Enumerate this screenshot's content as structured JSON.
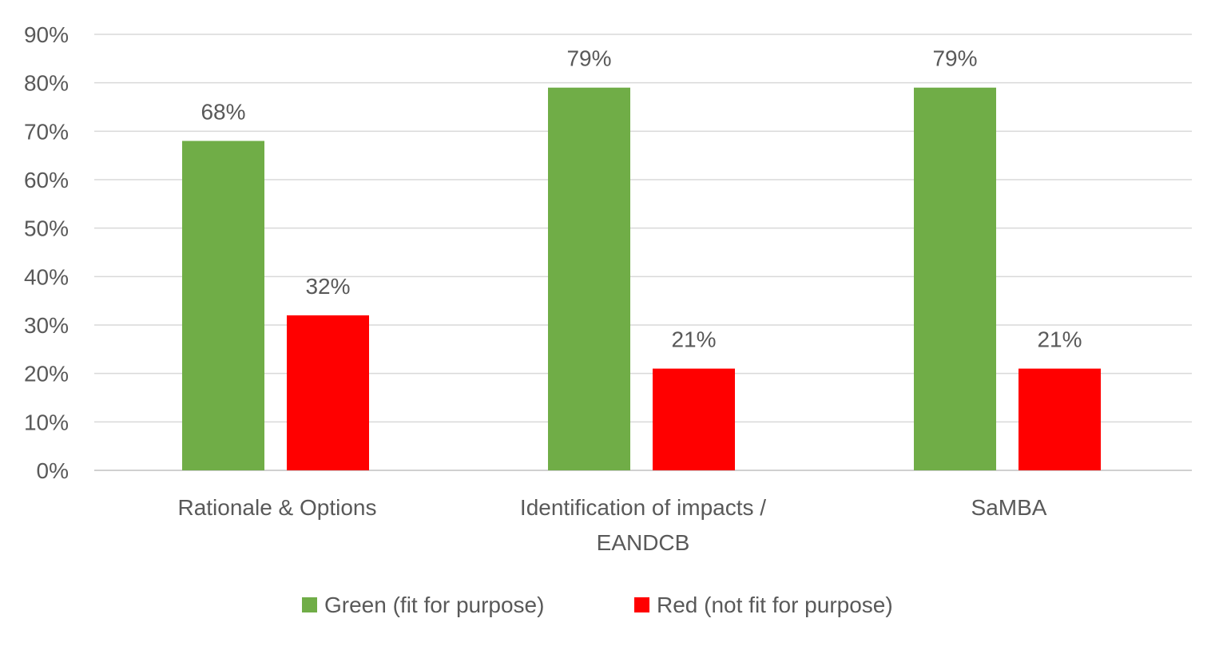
{
  "chart_data": {
    "type": "bar",
    "title": "",
    "xlabel": "",
    "ylabel": "",
    "ylim": [
      0,
      0.9
    ],
    "yticks": [
      "0%",
      "10%",
      "20%",
      "30%",
      "40%",
      "50%",
      "60%",
      "70%",
      "80%",
      "90%"
    ],
    "grid": true,
    "legend_position": "bottom",
    "categories": [
      "Rationale & Options",
      "Identification of impacts / EANDCB",
      "SaMBA"
    ],
    "series": [
      {
        "name": "Green (fit for purpose)",
        "color": "#70ad47",
        "values": [
          0.68,
          0.79,
          0.79
        ],
        "labels": [
          "68%",
          "79%",
          "79%"
        ]
      },
      {
        "name": "Red (not fit for purpose)",
        "color": "#ff0000",
        "values": [
          0.32,
          0.21,
          0.21
        ],
        "labels": [
          "32%",
          "21%",
          "21%"
        ]
      }
    ]
  }
}
